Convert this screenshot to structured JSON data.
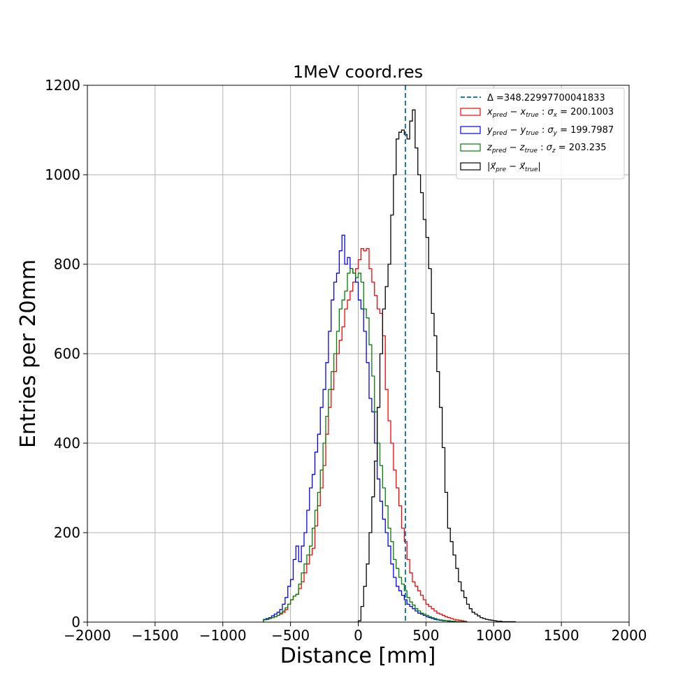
{
  "chart_data": {
    "type": "histogram",
    "title": "1MeV coord.res",
    "xlabel": "Distance [mm]",
    "ylabel": "Entries per 20mm",
    "xlim": [
      -2000,
      2000
    ],
    "ylim": [
      0,
      1200
    ],
    "bin_width": 20,
    "grid": true,
    "legend_placement": "top-right",
    "x_ticks": [
      -2000,
      -1500,
      -1000,
      -500,
      0,
      500,
      1000,
      1500,
      2000
    ],
    "x_tick_labels": [
      "−2000",
      "−1500",
      "−1000",
      "−500",
      "0",
      "500",
      "1000",
      "1500",
      "2000"
    ],
    "y_ticks": [
      0,
      200,
      400,
      600,
      800,
      1000,
      1200
    ],
    "y_tick_labels": [
      "0",
      "200",
      "400",
      "600",
      "800",
      "1000",
      "1200"
    ],
    "vline": {
      "x": 348.22997700041833,
      "color": "#1f77b4",
      "style": "dashed",
      "label_prefix": "Δ =",
      "label_value": "348.22997700041833"
    },
    "series": [
      {
        "key": "x",
        "color": "#ff0000",
        "legend_var": "x",
        "legend_sigma_sub": "x",
        "legend_sigma_value": "200.1003",
        "x_start": -700,
        "values": [
          5,
          6,
          8,
          10,
          12,
          15,
          18,
          22,
          28,
          40,
          50,
          58,
          62,
          75,
          90,
          110,
          130,
          150,
          165,
          215,
          260,
          300,
          350,
          420,
          480,
          520,
          560,
          600,
          630,
          660,
          700,
          720,
          740,
          760,
          790,
          810,
          835,
          830,
          835,
          790,
          760,
          730,
          700,
          690,
          640,
          520,
          450,
          400,
          340,
          300,
          260,
          210,
          180,
          140,
          110,
          90,
          80,
          70,
          60,
          50,
          40,
          35,
          30,
          25,
          20,
          18,
          15,
          12,
          10,
          8,
          6,
          5,
          4,
          3,
          2
        ]
      },
      {
        "key": "y",
        "color": "#0000ff",
        "legend_var": "y",
        "legend_sigma_sub": "y",
        "legend_sigma_value": "199.7987",
        "x_start": -700,
        "values": [
          6,
          8,
          10,
          14,
          18,
          22,
          28,
          40,
          55,
          80,
          95,
          140,
          170,
          135,
          170,
          200,
          250,
          300,
          330,
          380,
          420,
          480,
          520,
          580,
          650,
          720,
          760,
          780,
          830,
          865,
          800,
          815,
          790,
          780,
          760,
          720,
          700,
          650,
          580,
          500,
          470,
          400,
          320,
          270,
          230,
          200,
          170,
          130,
          100,
          80,
          70,
          60,
          50,
          40,
          35,
          30,
          25,
          20,
          18,
          15,
          12,
          10,
          8,
          6,
          5,
          4,
          3,
          3,
          2,
          2,
          2,
          1,
          1,
          1,
          1
        ]
      },
      {
        "key": "z",
        "color": "#008000",
        "legend_var": "z",
        "legend_sigma_sub": "z",
        "legend_sigma_value": "203.235",
        "x_start": -700,
        "values": [
          5,
          6,
          8,
          10,
          12,
          15,
          20,
          25,
          32,
          40,
          50,
          58,
          62,
          85,
          110,
          130,
          150,
          170,
          210,
          250,
          290,
          340,
          400,
          460,
          520,
          560,
          600,
          650,
          700,
          720,
          740,
          780,
          790,
          780,
          770,
          780,
          760,
          700,
          680,
          620,
          550,
          470,
          400,
          350,
          300,
          260,
          210,
          180,
          140,
          120,
          100,
          85,
          70,
          55,
          45,
          38,
          30,
          25,
          20,
          18,
          15,
          12,
          10,
          8,
          6,
          5,
          4,
          3,
          3,
          2,
          2,
          1,
          1,
          1,
          1
        ]
      },
      {
        "key": "mag",
        "color": "#000000",
        "legend_var": "mag",
        "x_start": 0,
        "values": [
          3,
          35,
          80,
          130,
          200,
          280,
          360,
          480,
          600,
          700,
          750,
          800,
          910,
          1000,
          1080,
          1095,
          1100,
          1090,
          1080,
          1120,
          1145,
          1060,
          1000,
          960,
          900,
          860,
          790,
          690,
          640,
          560,
          480,
          390,
          290,
          210,
          180,
          150,
          120,
          90,
          70,
          55,
          40,
          30,
          22,
          18,
          14,
          10,
          8,
          6,
          5,
          4,
          3,
          2,
          2,
          1,
          1,
          1,
          1,
          1
        ]
      }
    ]
  }
}
